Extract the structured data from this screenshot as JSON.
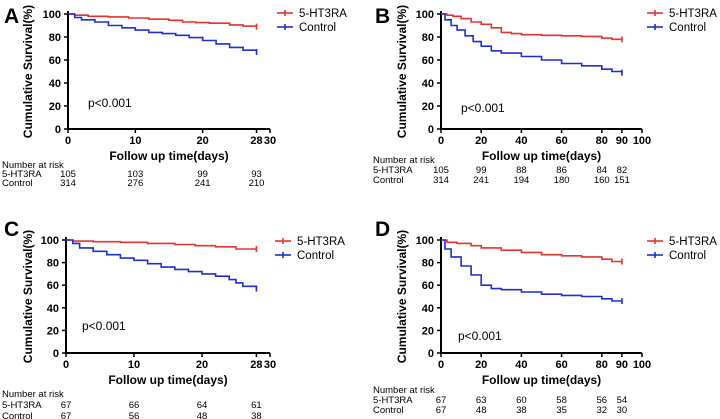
{
  "colors": {
    "treatment": "#e8322d",
    "control": "#1d2fd6",
    "axis": "#000000"
  },
  "chart_data": [
    {
      "type": "line",
      "panel_label": "A",
      "title": "",
      "xlabel": "Follow up time(days)",
      "ylabel": "Cumulative Survival(%)",
      "xlim": [
        0,
        30
      ],
      "ylim": [
        0,
        100
      ],
      "xticks": [
        "0",
        "10",
        "20",
        "28",
        "30"
      ],
      "yticks": [
        "0",
        "20",
        "40",
        "60",
        "80",
        "100"
      ],
      "annotation": "p<0.001",
      "legend": [
        "5-HT3RA",
        "Control"
      ],
      "series": [
        {
          "name": "5-HT3RA",
          "x": [
            0,
            1,
            3,
            6,
            9,
            12,
            15,
            17,
            19,
            21,
            24,
            26,
            28
          ],
          "y": [
            100,
            99,
            98,
            97.5,
            96.5,
            95.5,
            94.5,
            93,
            92.5,
            92,
            90.5,
            89.5,
            89
          ]
        },
        {
          "name": "Control",
          "x": [
            0,
            1,
            2,
            4,
            6,
            8,
            10,
            12,
            14,
            16,
            18,
            20,
            22,
            24,
            26,
            28
          ],
          "y": [
            100,
            97,
            95,
            93,
            90,
            88,
            86,
            84,
            83,
            81.5,
            79.5,
            77,
            74,
            71,
            68.5,
            67
          ]
        }
      ],
      "risk_table": {
        "header": "Number at risk",
        "times": [
          0,
          10,
          20,
          28
        ],
        "rows": [
          {
            "label": "5-HT3RA",
            "values": [
              "105",
              "103",
              "99",
              "93"
            ]
          },
          {
            "label": "Control",
            "values": [
              "314",
              "276",
              "241",
              "210"
            ]
          }
        ]
      }
    },
    {
      "type": "line",
      "panel_label": "B",
      "title": "",
      "xlabel": "Follow up time(days)",
      "ylabel": "Cumulative Survival(%)",
      "xlim": [
        0,
        100
      ],
      "ylim": [
        0,
        100
      ],
      "xticks": [
        "0",
        "20",
        "40",
        "60",
        "80",
        "90",
        "100"
      ],
      "yticks": [
        "0",
        "20",
        "40",
        "60",
        "80",
        "100"
      ],
      "annotation": "p<0.001",
      "legend": [
        "5-HT3RA",
        "Control"
      ],
      "series": [
        {
          "name": "5-HT3RA",
          "x": [
            0,
            3,
            6,
            10,
            15,
            20,
            25,
            30,
            35,
            40,
            50,
            60,
            70,
            80,
            85,
            90
          ],
          "y": [
            100,
            99,
            98,
            96,
            93,
            91,
            88,
            84,
            83,
            82,
            81.5,
            81,
            80.5,
            79,
            78,
            78
          ]
        },
        {
          "name": "Control",
          "x": [
            0,
            2,
            5,
            8,
            12,
            16,
            20,
            25,
            30,
            40,
            50,
            60,
            70,
            80,
            85,
            90
          ],
          "y": [
            100,
            95,
            90,
            86,
            81,
            76,
            72,
            68,
            66,
            63,
            60,
            57,
            55,
            52,
            50,
            49
          ]
        }
      ],
      "risk_table": {
        "header": "Number at risk",
        "times": [
          0,
          20,
          40,
          60,
          80,
          90
        ],
        "rows": [
          {
            "label": "5-HT3RA",
            "values": [
              "105",
              "99",
              "88",
              "86",
              "84",
              "82"
            ]
          },
          {
            "label": "Control",
            "values": [
              "314",
              "241",
              "194",
              "180",
              "160",
              "151"
            ]
          }
        ]
      }
    },
    {
      "type": "line",
      "panel_label": "C",
      "title": "",
      "xlabel": "Follow up time(days)",
      "ylabel": "Cumulative Survival(%)",
      "xlim": [
        0,
        30
      ],
      "ylim": [
        0,
        100
      ],
      "xticks": [
        "0",
        "10",
        "20",
        "28",
        "30"
      ],
      "yticks": [
        "0",
        "20",
        "40",
        "60",
        "80",
        "100"
      ],
      "annotation": "p<0.001",
      "legend": [
        "5-HT3RA",
        "Control"
      ],
      "series": [
        {
          "name": "5-HT3RA",
          "x": [
            0,
            1,
            4,
            8,
            12,
            16,
            19,
            22,
            25,
            28
          ],
          "y": [
            100,
            99,
            98.5,
            98,
            97,
            96,
            95,
            94,
            92,
            92
          ]
        },
        {
          "name": "Control",
          "x": [
            0,
            1,
            2,
            4,
            6,
            8,
            10,
            12,
            14,
            16,
            18,
            20,
            22,
            24,
            25,
            26,
            28
          ],
          "y": [
            100,
            97,
            93,
            90,
            87,
            84,
            82,
            79,
            76,
            74,
            72,
            70,
            68,
            65,
            62,
            59,
            57
          ]
        }
      ],
      "risk_table": {
        "header": "Number at risk",
        "times": [
          0,
          10,
          20,
          28
        ],
        "rows": [
          {
            "label": "5-HT3RA",
            "values": [
              "67",
              "66",
              "64",
              "61"
            ]
          },
          {
            "label": "Control",
            "values": [
              "67",
              "56",
              "48",
              "38"
            ]
          }
        ]
      }
    },
    {
      "type": "line",
      "panel_label": "D",
      "title": "",
      "xlabel": "Follow up time(days)",
      "ylabel": "Cumulative Survival(%)",
      "xlim": [
        0,
        100
      ],
      "ylim": [
        0,
        100
      ],
      "xticks": [
        "0",
        "20",
        "40",
        "60",
        "80",
        "90",
        "100"
      ],
      "yticks": [
        "0",
        "20",
        "40",
        "60",
        "80",
        "100"
      ],
      "annotation": "p<0.001",
      "legend": [
        "5-HT3RA",
        "Control"
      ],
      "series": [
        {
          "name": "5-HT3RA",
          "x": [
            0,
            3,
            8,
            15,
            20,
            30,
            40,
            50,
            60,
            70,
            80,
            85,
            90
          ],
          "y": [
            100,
            98,
            97,
            95,
            93,
            91,
            89,
            87,
            86,
            85,
            83,
            81,
            81
          ]
        },
        {
          "name": "Control",
          "x": [
            0,
            2,
            5,
            10,
            15,
            20,
            25,
            30,
            40,
            50,
            60,
            70,
            80,
            85,
            90
          ],
          "y": [
            100,
            92,
            85,
            77,
            69,
            60,
            57,
            56,
            54,
            52,
            51,
            50,
            48,
            46,
            46
          ]
        }
      ],
      "risk_table": {
        "header": "Number at risk",
        "times": [
          0,
          20,
          40,
          60,
          80,
          90
        ],
        "rows": [
          {
            "label": "5-HT3RA",
            "values": [
              "67",
              "63",
              "60",
              "58",
              "56",
              "54"
            ]
          },
          {
            "label": "Control",
            "values": [
              "67",
              "48",
              "38",
              "35",
              "32",
              "30"
            ]
          }
        ]
      }
    }
  ]
}
